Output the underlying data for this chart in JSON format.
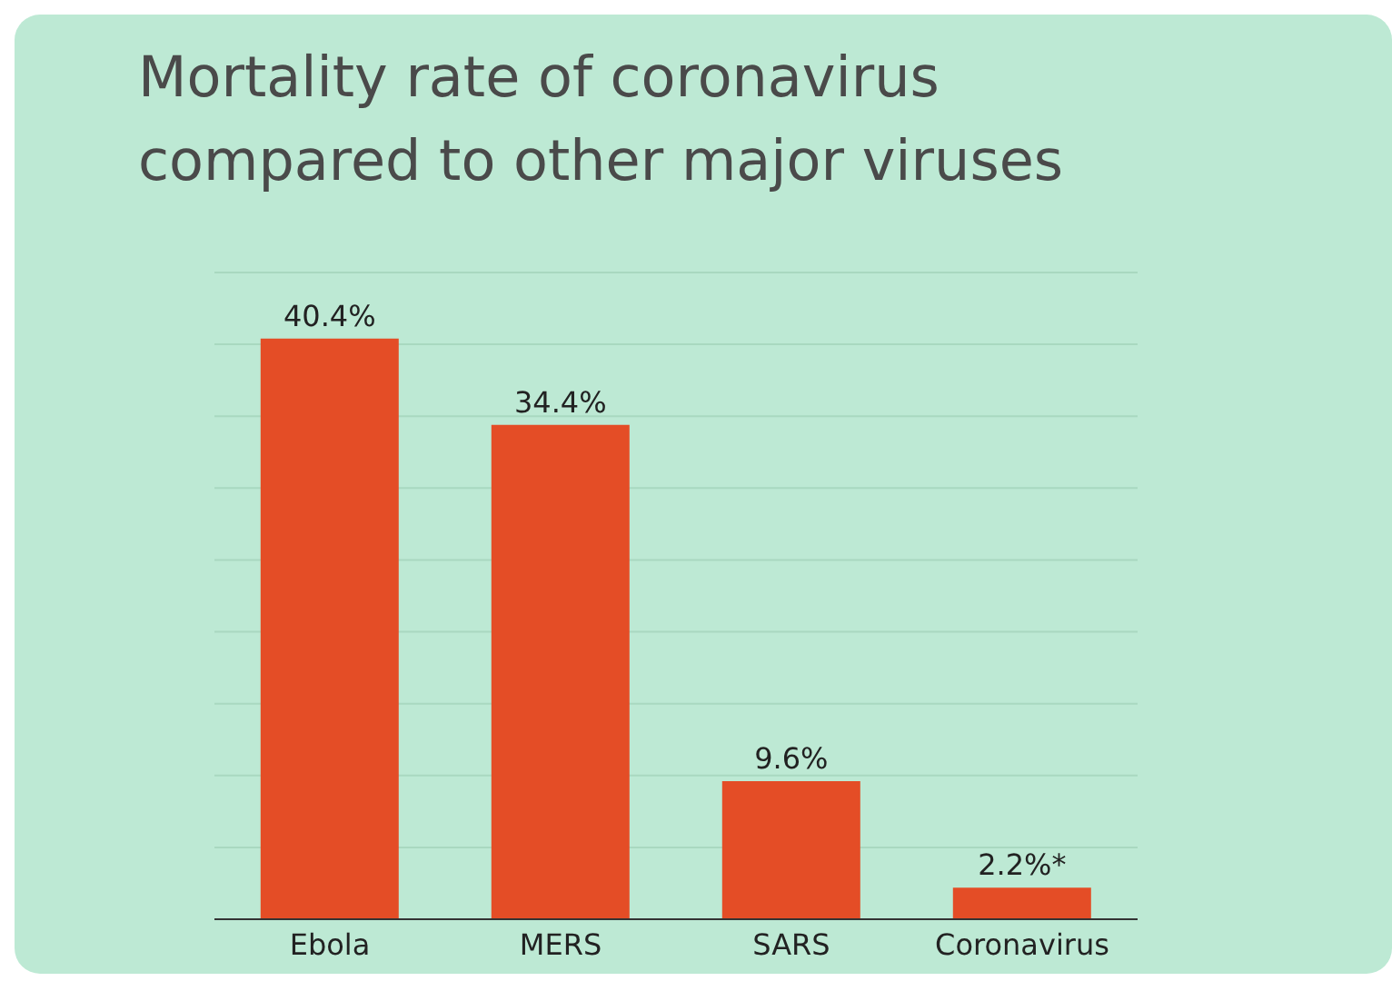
{
  "chart_data": {
    "type": "bar",
    "title": "Mortality rate of coronavirus compared to other major viruses",
    "categories": [
      "Ebola",
      "MERS",
      "SARS",
      "Coronavirus"
    ],
    "values": [
      40.4,
      34.4,
      9.6,
      2.2
    ],
    "value_labels": [
      "40.4%",
      "34.4%",
      "9.6%",
      "2.2%*"
    ],
    "color": "#e44d26",
    "ylim": [
      0,
      45
    ],
    "yticks": [
      {
        "value": 0,
        "label": null
      },
      {
        "value": 5,
        "label": null
      },
      {
        "value": 10,
        "label": null
      },
      {
        "value": 15,
        "label": null
      },
      {
        "value": 20,
        "label": null
      },
      {
        "value": 25,
        "label": null
      },
      {
        "value": 30,
        "label": null
      },
      {
        "value": 35,
        "label": null
      },
      {
        "value": 40,
        "label": null
      },
      {
        "value": 45,
        "label": null
      }
    ],
    "tick_labels": "x",
    "grid": "y"
  }
}
